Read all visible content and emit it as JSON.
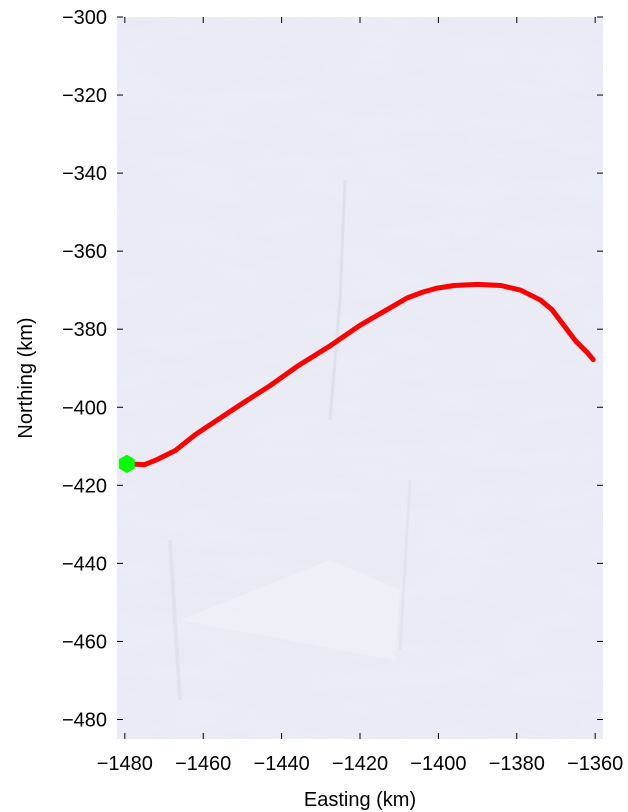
{
  "chart_data": {
    "type": "line",
    "title": "",
    "xlabel": "Easting (km)",
    "ylabel": "Northing (km)",
    "xlim": [
      -1482,
      -1358
    ],
    "ylim": [
      -485,
      -300
    ],
    "x_ticks": [
      -1480,
      -1460,
      -1440,
      -1420,
      -1400,
      -1380,
      -1360
    ],
    "y_ticks": [
      -300,
      -320,
      -340,
      -360,
      -380,
      -400,
      -420,
      -440,
      -460,
      -480
    ],
    "x_tick_labels": [
      "−1480",
      "−1460",
      "−1440",
      "−1420",
      "−1400",
      "−1380",
      "−1360"
    ],
    "y_tick_labels": [
      "−300",
      "−320",
      "−340",
      "−360",
      "−380",
      "−400",
      "−420",
      "−440",
      "−460",
      "−480"
    ],
    "grid": false,
    "background": "satellite imagery of ice sheet surface",
    "series": [
      {
        "color": "#ff0000",
        "points": [
          [
            -1479.5,
            -414.5
          ],
          [
            -1475,
            -414.7
          ],
          [
            -1472,
            -413.5
          ],
          [
            -1467,
            -411
          ],
          [
            -1462,
            -407
          ],
          [
            -1456,
            -403
          ],
          [
            -1450,
            -399
          ],
          [
            -1443,
            -394.5
          ],
          [
            -1436,
            -389.5
          ],
          [
            -1428,
            -384.5
          ],
          [
            -1420,
            -379
          ],
          [
            -1414,
            -375.5
          ],
          [
            -1408,
            -372
          ],
          [
            -1404,
            -370.5
          ],
          [
            -1400.5,
            -369.5
          ],
          [
            -1396,
            -368.8
          ],
          [
            -1390,
            -368.5
          ],
          [
            -1384,
            -368.8
          ],
          [
            -1379,
            -370
          ],
          [
            -1374,
            -372.5
          ],
          [
            -1371,
            -375
          ],
          [
            -1368,
            -379
          ],
          [
            -1365,
            -383
          ],
          [
            -1362,
            -386
          ],
          [
            -1360.5,
            -387.8
          ]
        ]
      }
    ],
    "markers": [
      {
        "x": -1479.5,
        "y": -414.5,
        "shape": "hexagon",
        "color": "#00ff00"
      }
    ]
  }
}
